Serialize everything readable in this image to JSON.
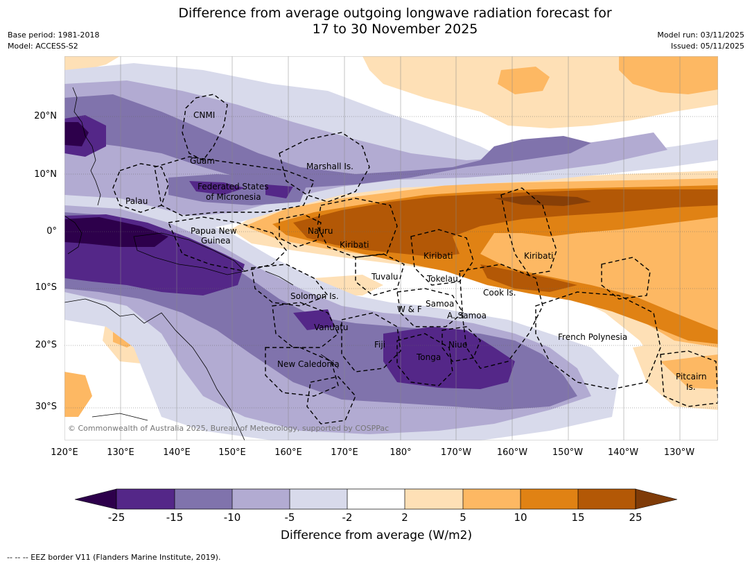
{
  "header": {
    "title_line1": "Difference from average outgoing longwave radiation forecast for",
    "title_line2": "17 to 30 November 2025",
    "base_period": "Base period: 1981-2018",
    "model": "Model: ACCESS-S2",
    "model_run": "Model run: 03/11/2025",
    "issued": "Issued: 05/11/2025"
  },
  "map": {
    "copyright": "© Commonwealth of Australia 2025, Bureau of Meteorology, supported by COSPPac",
    "lon_labels": [
      "120°E",
      "130°E",
      "140°E",
      "150°E",
      "160°E",
      "170°E",
      "180°",
      "170°W",
      "160°W",
      "150°W",
      "140°W",
      "130°W"
    ],
    "lat_labels": [
      "20°N",
      "10°N",
      "0°",
      "10°S",
      "20°S",
      "30°S"
    ],
    "regions": {
      "cnmi": "CNMI",
      "guam": "Guam",
      "marshall": "Marshall Is.",
      "fsm1": "Federated States",
      "fsm2": "of Micronesia",
      "palau": "Palau",
      "png1": "Papua New",
      "png2": "Guinea",
      "nauru": "Nauru",
      "kiribati1": "Kiribati",
      "kiribati2": "Kiribati",
      "kiribati3": "Kiribati",
      "tuvalu": "Tuvalu",
      "tokelau": "Tokelau",
      "cook": "Cook Is.",
      "solomon": "Solomon Is.",
      "samoa": "Samoa",
      "wf": "W & F",
      "asamoa": "A. Samoa",
      "vanuatu": "Vanuatu",
      "fiji": "Fiji",
      "niue": "Niue",
      "tonga": "Tonga",
      "frpoly": "French Polynesia",
      "newcal": "New Caledonia",
      "pitcairn1": "Pitcairn",
      "pitcairn2": "Is."
    }
  },
  "colorbar": {
    "colors": {
      "lt_neg25": "#2d004b",
      "neg25_15": "#542788",
      "neg15_10": "#8073ac",
      "neg10_5": "#b2abd2",
      "neg5_2": "#d8daeb",
      "neg2_2": "#ffffff",
      "p2_5": "#fee0b6",
      "p5_10": "#fdb863",
      "p10_15": "#e08214",
      "p15_25": "#b35806",
      "gt25": "#7f3b08"
    },
    "ticks": [
      "-25",
      "-15",
      "-10",
      "-5",
      "-2",
      "2",
      "5",
      "10",
      "15",
      "25"
    ],
    "label": "Difference from average (W/m2)"
  },
  "footer": {
    "legend": "--  --  -- EEZ border V11 (Flanders Marine Institute, 2019)."
  }
}
